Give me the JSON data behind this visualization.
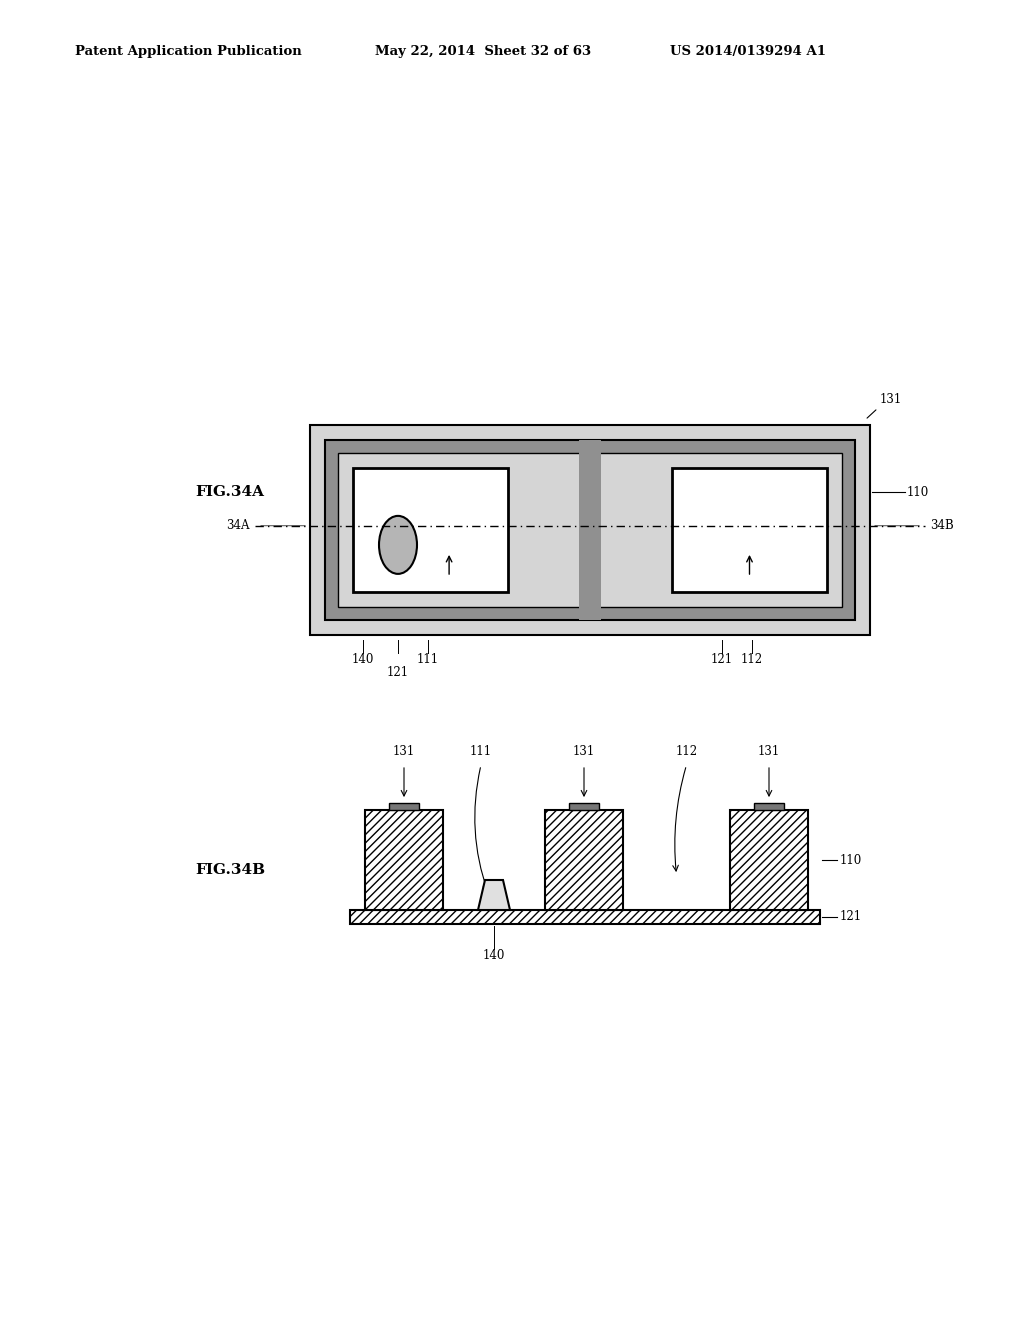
{
  "header_left": "Patent Application Publication",
  "header_mid": "May 22, 2014  Sheet 32 of 63",
  "header_right": "US 2014/0139294 A1",
  "bg_color": "#ffffff",
  "text_color": "#000000",
  "outer_fill": "#d8d8d8",
  "inner_border_fill": "#999999",
  "inner_dotted_fill": "#e0e0e0",
  "cavity_fill": "#ffffff",
  "ellipse_fill": "#b0b0b0",
  "hatch_fill": "#ffffff"
}
